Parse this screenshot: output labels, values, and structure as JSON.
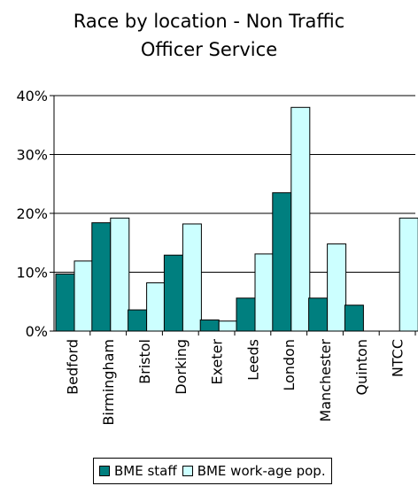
{
  "chart_data": {
    "type": "bar",
    "title_lines": [
      "Race by location - Non Traffic",
      "Officer Service"
    ],
    "categories": [
      "Bedford",
      "Birmingham",
      "Bristol",
      "Dorking",
      "Exeter",
      "Leeds",
      "London",
      "Manchester",
      "Quinton",
      "NTCC"
    ],
    "series": [
      {
        "name": "BME staff",
        "color": "#007f7f",
        "values": [
          9.7,
          18.4,
          3.6,
          12.9,
          1.9,
          5.6,
          23.5,
          5.6,
          4.4,
          0
        ]
      },
      {
        "name": "BME work-age pop.",
        "color": "#ccffff",
        "values": [
          11.9,
          19.2,
          8.2,
          18.2,
          1.7,
          13.1,
          38.0,
          14.8,
          0,
          19.2
        ]
      }
    ],
    "yticks": [
      "0%",
      "10%",
      "20%",
      "30%",
      "40%"
    ],
    "ylim": [
      0,
      40
    ],
    "grid": true,
    "legend_position": "bottom"
  }
}
